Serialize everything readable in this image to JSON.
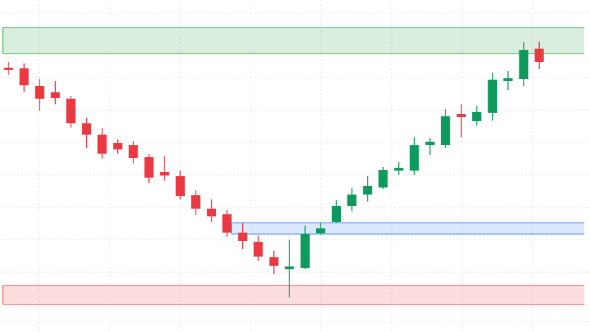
{
  "chart_data": {
    "type": "candlestick",
    "ylim": [
      0,
      471
    ],
    "up_color": "#0e9a5c",
    "down_color": "#ea3943",
    "open": [
      375,
      374,
      349,
      340,
      331,
      296,
      280,
      268,
      265,
      248,
      227,
      221,
      194,
      175,
      167,
      141,
      128,
      106,
      89,
      91,
      140,
      156,
      179,
      195,
      205,
      229,
      229,
      265,
      265,
      309,
      299,
      311,
      356,
      359,
      402
    ],
    "high": [
      383,
      381,
      359,
      356,
      335,
      304,
      289,
      273,
      271,
      252,
      250,
      229,
      201,
      188,
      173,
      154,
      137,
      115,
      131,
      151,
      155,
      187,
      204,
      221,
      234,
      241,
      276,
      275,
      316,
      323,
      321,
      368,
      370,
      411,
      412
    ],
    "low": [
      365,
      341,
      314,
      323,
      290,
      261,
      246,
      253,
      239,
      211,
      214,
      188,
      166,
      156,
      135,
      118,
      101,
      82,
      49,
      89,
      138,
      155,
      171,
      185,
      203,
      223,
      223,
      251,
      261,
      276,
      293,
      300,
      343,
      349,
      373
    ],
    "close": [
      372,
      350,
      331,
      332,
      296,
      280,
      253,
      259,
      247,
      219,
      222,
      193,
      175,
      164,
      141,
      129,
      107,
      94,
      93,
      139,
      147,
      179,
      195,
      207,
      230,
      233,
      265,
      270,
      306,
      305,
      312,
      358,
      360,
      400,
      383
    ],
    "zones": [
      {
        "low": 395,
        "high": 432,
        "color": "#2ea043",
        "start_index": 0
      },
      {
        "low": 139,
        "high": 155,
        "color": "#3b82f6",
        "start_index": 14
      },
      {
        "low": 39,
        "high": 66,
        "color": "#ef4444",
        "start_index": 0
      }
    ]
  }
}
